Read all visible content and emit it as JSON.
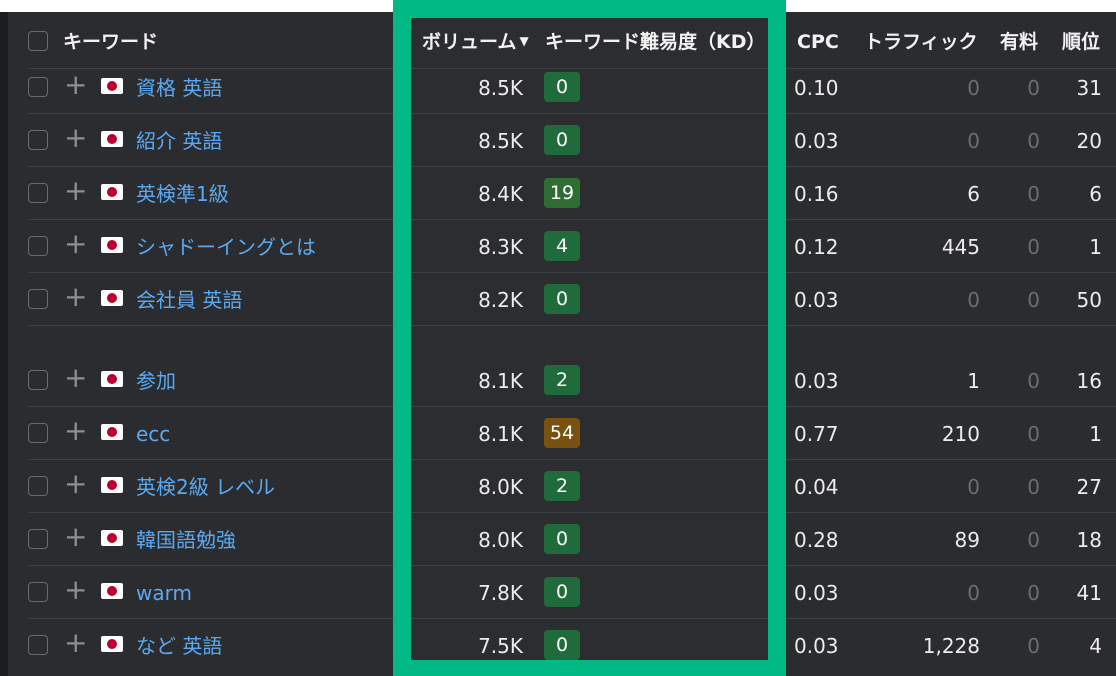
{
  "colors": {
    "background": "#2b2c2f",
    "keyword_link": "#5aa9f0",
    "highlight": "#00b985",
    "kd_low": "#1f6b3b",
    "kd_mid": "#2e6e33",
    "kd_high": "#7a5210"
  },
  "header": {
    "keyword": "キーワード",
    "volume": "ボリューム",
    "kd": "キーワード難易度（KD）",
    "cpc": "CPC",
    "traffic": "トラフィック",
    "paid": "有料",
    "rank": "順位"
  },
  "icons": {
    "sort": "sort-desc-icon",
    "add": "plus-icon",
    "flag": "japan-flag-icon"
  },
  "rows": [
    {
      "keyword": "資格 英語",
      "volume": "8.5K",
      "kd": "0",
      "cpc": "0.10",
      "traffic": "0",
      "paid": "0",
      "rank": "31"
    },
    {
      "keyword": "紹介 英語",
      "volume": "8.5K",
      "kd": "0",
      "cpc": "0.03",
      "traffic": "0",
      "paid": "0",
      "rank": "20"
    },
    {
      "keyword": "英検準1級",
      "volume": "8.4K",
      "kd": "19",
      "cpc": "0.16",
      "traffic": "6",
      "paid": "0",
      "rank": "6"
    },
    {
      "keyword": "シャドーイングとは",
      "volume": "8.3K",
      "kd": "4",
      "cpc": "0.12",
      "traffic": "445",
      "paid": "0",
      "rank": "1"
    },
    {
      "keyword": "会社員 英語",
      "volume": "8.2K",
      "kd": "0",
      "cpc": "0.03",
      "traffic": "0",
      "paid": "0",
      "rank": "50"
    },
    {
      "keyword": "参加",
      "volume": "8.1K",
      "kd": "2",
      "cpc": "0.03",
      "traffic": "1",
      "paid": "0",
      "rank": "16"
    },
    {
      "keyword": "ecc",
      "volume": "8.1K",
      "kd": "54",
      "cpc": "0.77",
      "traffic": "210",
      "paid": "0",
      "rank": "1"
    },
    {
      "keyword": "英検2級 レベル",
      "volume": "8.0K",
      "kd": "2",
      "cpc": "0.04",
      "traffic": "0",
      "paid": "0",
      "rank": "27"
    },
    {
      "keyword": "韓国語勉強",
      "volume": "8.0K",
      "kd": "0",
      "cpc": "0.28",
      "traffic": "89",
      "paid": "0",
      "rank": "18"
    },
    {
      "keyword": "warm",
      "volume": "7.8K",
      "kd": "0",
      "cpc": "0.03",
      "traffic": "0",
      "paid": "0",
      "rank": "41"
    },
    {
      "keyword": "など 英語",
      "volume": "7.5K",
      "kd": "0",
      "cpc": "0.03",
      "traffic": "1,228",
      "paid": "0",
      "rank": "4"
    }
  ]
}
